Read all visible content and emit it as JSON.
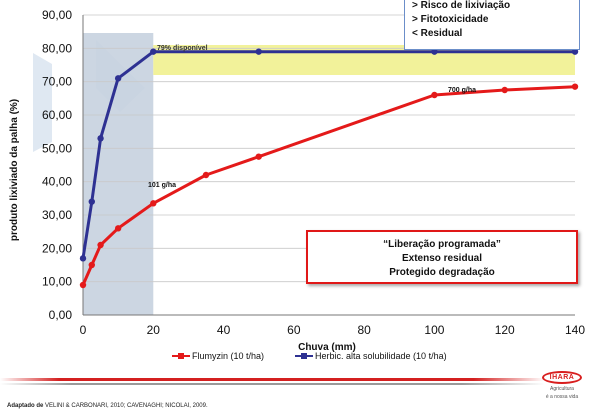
{
  "chart_data": {
    "type": "line",
    "xlabel": "Chuva (mm)",
    "ylabel": "produto lixiviado da palha (%)",
    "xlim": [
      0,
      140
    ],
    "ylim": [
      0,
      90
    ],
    "xticks": [
      "0",
      "20",
      "40",
      "60",
      "80",
      "100",
      "120",
      "140"
    ],
    "yticks": [
      "0,00",
      "10,00",
      "20,00",
      "30,00",
      "40,00",
      "50,00",
      "60,00",
      "70,00",
      "80,00",
      "90,00"
    ],
    "grid": true,
    "legend_position": "bottom",
    "series": [
      {
        "name": "Flumyzin (10 t/ha)",
        "color": "#e41a1a",
        "points": [
          [
            0,
            9
          ],
          [
            2.5,
            15
          ],
          [
            5,
            21
          ],
          [
            10,
            26
          ],
          [
            20,
            33.5
          ],
          [
            35,
            42
          ],
          [
            50,
            47.5
          ],
          [
            100,
            66
          ],
          [
            120,
            67.5
          ],
          [
            140,
            68.5
          ]
        ]
      },
      {
        "name": "Herbic. alta solubilidade (10 t/ha)",
        "color": "#2e3192",
        "points": [
          [
            0,
            17
          ],
          [
            2.5,
            34
          ],
          [
            5,
            53
          ],
          [
            10,
            71
          ],
          [
            20,
            79
          ],
          [
            50,
            79
          ],
          [
            100,
            79
          ],
          [
            140,
            79
          ]
        ]
      }
    ],
    "annotations": {
      "disponivel": "79% disponível",
      "g101": "101 g/ha",
      "g700": "700 g/ha"
    },
    "shaded_band_x": [
      0,
      20
    ],
    "highlight_band_y": [
      72,
      81
    ]
  },
  "info_box": [
    "> Risco de lixiviação",
    "> Fitotoxicidade",
    "< Residual"
  ],
  "callout": [
    "“Liberação programada”",
    "Extenso residual",
    "Protegido degradação"
  ],
  "citation": {
    "prefix": "Adaptado de",
    "text": " VELINI & CARBONARI, 2010; CAVENAGHI; NICOLAI, 2009."
  },
  "logo": {
    "name": "IHARA",
    "tagline_1": "Agricultura",
    "tagline_2": "é a nossa vida"
  },
  "colors": {
    "shade": "#c7d1df",
    "highlight": "#f2f29a",
    "flumyzin": "#e41a1a",
    "herbic": "#2e3192"
  }
}
